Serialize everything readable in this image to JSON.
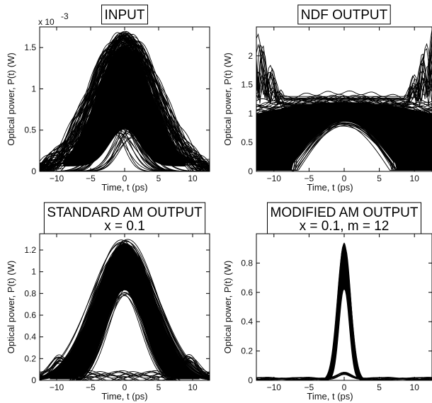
{
  "chart_data": [
    {
      "type": "line",
      "title": [
        "INPUT"
      ],
      "xlabel": "Time, t  (ps)",
      "ylabel": "Optical power, P(t)  (W)",
      "y_multiplier": "x 10",
      "y_exponent": "-3",
      "xlim": [
        -12.5,
        12.5
      ],
      "ylim": [
        0,
        0.00175
      ],
      "xticks": [
        -10,
        -5,
        0,
        5,
        10
      ],
      "yticks": [
        0,
        0.0005,
        0.001,
        0.0015
      ],
      "ytick_labels": [
        "0",
        "0.5",
        "1",
        "1.5"
      ],
      "description_series": [
        {
          "x": [
            -12.5,
            -10,
            -7.5,
            -5,
            -2.5,
            0,
            2.5,
            5,
            7.5,
            10,
            12.5
          ],
          "y": [
            5e-05,
            0.00025,
            0.0008,
            0.00135,
            0.00158,
            0.00163,
            0.00158,
            0.00135,
            0.0008,
            0.00025,
            5e-05
          ]
        },
        {
          "x": [
            -10,
            -5,
            -2.5,
            0,
            2.5,
            5,
            10
          ],
          "y": [
            0,
            5e-05,
            0.0002,
            0.00045,
            0.0002,
            5e-05,
            0
          ]
        }
      ]
    },
    {
      "type": "line",
      "title": [
        "NDF OUTPUT"
      ],
      "xlabel": "Time, t  (ps)",
      "ylabel": "Optical power, P(t)  (W)",
      "xlim": [
        -12.5,
        12.5
      ],
      "ylim": [
        0,
        2.5
      ],
      "xticks": [
        -10,
        -5,
        0,
        5,
        10
      ],
      "yticks": [
        0,
        0.5,
        1,
        1.5,
        2
      ],
      "ytick_labels": [
        "0",
        "0.5",
        "1",
        "1.5",
        "2"
      ],
      "description_series": [
        {
          "x": [
            -12.5,
            -10,
            -5,
            0,
            5,
            10,
            12.5
          ],
          "y": [
            1.0,
            1.05,
            1.15,
            1.2,
            1.15,
            1.05,
            1.0
          ]
        },
        {
          "x": [
            -12.5,
            -11.5,
            -10.5,
            -9.5
          ],
          "y": [
            2.4,
            2.2,
            1.6,
            1.2
          ]
        },
        {
          "x": [
            -7.5,
            -5,
            -2.5,
            0,
            2.5,
            5,
            7.5
          ],
          "y": [
            0.02,
            0.15,
            0.6,
            0.85,
            0.6,
            0.15,
            0.02
          ]
        }
      ]
    },
    {
      "type": "line",
      "title": [
        "STANDARD AM OUTPUT",
        "x = 0.1"
      ],
      "xlabel": "Time, t  (ps)",
      "ylabel": "Optical power, P(t)  (W)",
      "xlim": [
        -12.5,
        12.5
      ],
      "ylim": [
        0,
        1.35
      ],
      "xticks": [
        -10,
        -5,
        0,
        5,
        10
      ],
      "yticks": [
        0,
        0.2,
        0.4,
        0.6,
        0.8,
        1,
        1.2
      ],
      "ytick_labels": [
        "0",
        "0.2",
        "0.4",
        "0.6",
        "0.8",
        "1",
        "1.2"
      ],
      "description_series": [
        {
          "x": [
            -10,
            -7.5,
            -5,
            -2.5,
            0,
            2.5,
            5,
            7.5,
            10
          ],
          "y": [
            0.02,
            0.25,
            0.7,
            1.1,
            1.3,
            1.1,
            0.7,
            0.25,
            0.02
          ]
        },
        {
          "x": [
            -8,
            -6,
            -4,
            -2,
            0,
            2,
            4,
            6,
            8
          ],
          "y": [
            0.05,
            0.25,
            0.5,
            0.75,
            0.88,
            0.75,
            0.5,
            0.25,
            0.05
          ]
        }
      ]
    },
    {
      "type": "line",
      "title": [
        "MODIFIED AM OUTPUT",
        "x = 0.1, m = 12"
      ],
      "xlabel": "Time, t  (ps)",
      "ylabel": "Optical power, P(t)  (W)",
      "xlim": [
        -12.5,
        12.5
      ],
      "ylim": [
        0,
        1.0
      ],
      "xticks": [
        -10,
        -5,
        0,
        5,
        10
      ],
      "yticks": [
        0,
        0.2,
        0.4,
        0.6,
        0.8
      ],
      "ytick_labels": [
        "0",
        "0.2",
        "0.4",
        "0.6",
        "0.8"
      ],
      "description_series": [
        {
          "x": [
            -3,
            -2,
            -1,
            0,
            1,
            2,
            3
          ],
          "y": [
            0.02,
            0.15,
            0.6,
            0.95,
            0.6,
            0.15,
            0.02
          ]
        },
        {
          "x": [
            -12.5,
            -5,
            0,
            5,
            12.5
          ],
          "y": [
            0.01,
            0.01,
            0.03,
            0.01,
            0.01
          ]
        }
      ]
    }
  ]
}
